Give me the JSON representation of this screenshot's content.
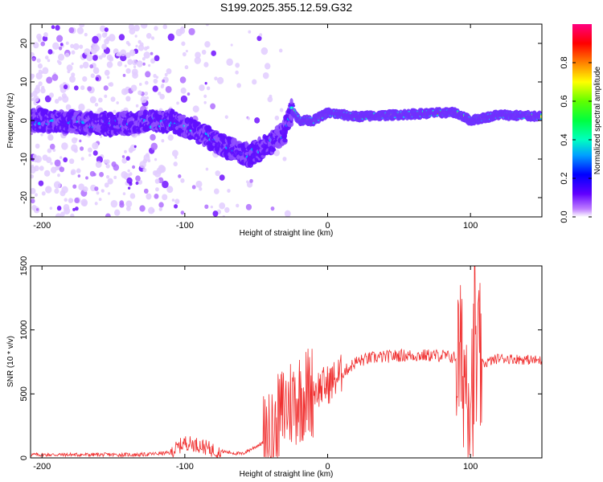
{
  "title": "S199.2025.355.12.59.G32",
  "colors": {
    "snr_line": "#f03030",
    "colormap": [
      "#ffffff",
      "#c080ff",
      "#6000ff",
      "#0000ff",
      "#00c0ff",
      "#00ff80",
      "#40ff00",
      "#ffff00",
      "#ff8000",
      "#ff0000",
      "#ff00a0"
    ]
  },
  "chart_data": [
    {
      "type": "heatmap",
      "xlabel": "Height of straight line (km)",
      "ylabel": "Frequency (Hz)",
      "xlim": [
        -208,
        150
      ],
      "ylim": [
        -25,
        25
      ],
      "xticks": [
        -200,
        -100,
        0,
        100
      ],
      "yticks": [
        -20,
        -10,
        0,
        10,
        20
      ],
      "xtick_labels": [
        "-200",
        "-100",
        "0",
        "100"
      ],
      "ytick_labels": [
        "-20",
        "-10",
        "0",
        "10",
        "20"
      ],
      "colorbar": {
        "label": "Normalized spectral amplitude",
        "range": [
          0,
          1
        ],
        "ticks": [
          0.0,
          0.2,
          0.4,
          0.6,
          0.8
        ],
        "tick_labels": [
          "0.0",
          "0.2",
          "0.4",
          "0.6",
          "0.8"
        ]
      },
      "ridge": [
        {
          "x": -200,
          "f": 0
        },
        {
          "x": -150,
          "f": -1
        },
        {
          "x": -110,
          "f": 0
        },
        {
          "x": -90,
          "f": -3
        },
        {
          "x": -70,
          "f": -7
        },
        {
          "x": -55,
          "f": -9
        },
        {
          "x": -40,
          "f": -6
        },
        {
          "x": -30,
          "f": -3
        },
        {
          "x": -25,
          "f": 3
        },
        {
          "x": -20,
          "f": 0
        },
        {
          "x": -10,
          "f": 0
        },
        {
          "x": 0,
          "f": 2
        },
        {
          "x": 20,
          "f": 1
        },
        {
          "x": 50,
          "f": 1.5
        },
        {
          "x": 80,
          "f": 2
        },
        {
          "x": 90,
          "f": 2
        },
        {
          "x": 100,
          "f": 0
        },
        {
          "x": 120,
          "f": 1.5
        },
        {
          "x": 150,
          "f": 1
        }
      ]
    },
    {
      "type": "line",
      "xlabel": "Height of straight line (km)",
      "ylabel": "SNR (10 * v/v)",
      "xlim": [
        -208,
        150
      ],
      "ylim": [
        0,
        1500
      ],
      "xticks": [
        -200,
        -100,
        0,
        100
      ],
      "yticks": [
        0,
        500,
        1000,
        1500
      ],
      "xtick_labels": [
        "-200",
        "-100",
        "0",
        "100"
      ],
      "ytick_labels": [
        "0",
        "500",
        "1000",
        "1500"
      ],
      "trend": [
        {
          "x": -208,
          "y": 25
        },
        {
          "x": -130,
          "y": 25
        },
        {
          "x": -110,
          "y": 40
        },
        {
          "x": -100,
          "y": 120
        },
        {
          "x": -90,
          "y": 100
        },
        {
          "x": -80,
          "y": 60
        },
        {
          "x": -60,
          "y": 30
        },
        {
          "x": -40,
          "y": 150
        },
        {
          "x": -30,
          "y": 400
        },
        {
          "x": -20,
          "y": 480
        },
        {
          "x": -10,
          "y": 530
        },
        {
          "x": 0,
          "y": 570
        },
        {
          "x": 10,
          "y": 660
        },
        {
          "x": 20,
          "y": 750
        },
        {
          "x": 30,
          "y": 780
        },
        {
          "x": 50,
          "y": 800
        },
        {
          "x": 80,
          "y": 800
        },
        {
          "x": 90,
          "y": 780
        },
        {
          "x": 95,
          "y": 700
        },
        {
          "x": 100,
          "y": 600
        },
        {
          "x": 105,
          "y": 720
        },
        {
          "x": 120,
          "y": 780
        },
        {
          "x": 150,
          "y": 760
        }
      ],
      "peak": {
        "x": 103,
        "y": 1500
      }
    }
  ]
}
